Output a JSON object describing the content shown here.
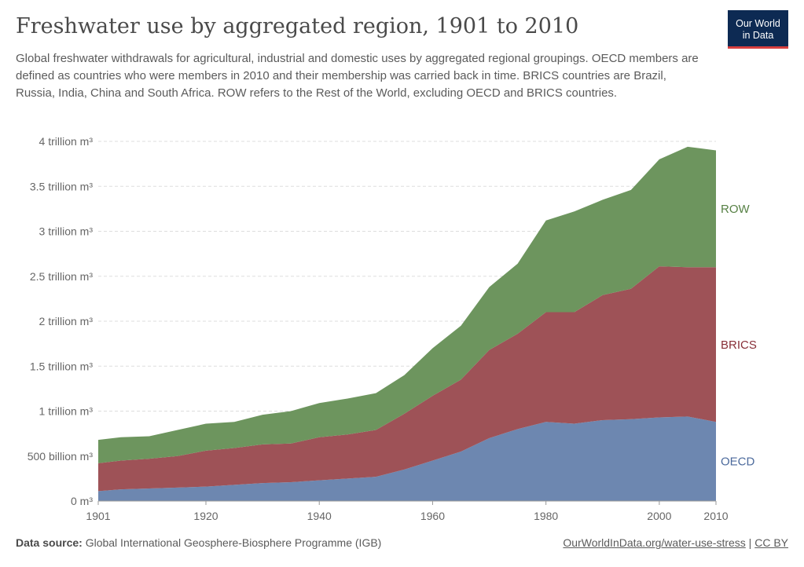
{
  "header": {
    "title": "Freshwater use by aggregated region, 1901 to 2010",
    "subtitle": "Global freshwater withdrawals for agricultural, industrial and domestic uses by aggregated regional groupings. OECD members are defined as countries who were members in 2010 and their membership was carried back in time. BRICS countries are Brazil, Russia, India, China and South Africa. ROW refers to the Rest of the World, excluding OECD and BRICS countries.",
    "logo_line1": "Our World",
    "logo_line2": "in Data"
  },
  "footer": {
    "source_label": "Data source:",
    "source_text": "Global International Geosphere-Biosphere Programme (IGB)",
    "link_text": "OurWorldInData.org/water-use-stress",
    "separator": "|",
    "license": "CC BY"
  },
  "colors": {
    "OECD": "#6d87b0",
    "BRICS": "#9e5257",
    "ROW": "#6d955e",
    "OECD_label": "#4c6a9c",
    "BRICS_label": "#883039",
    "ROW_label": "#578145"
  },
  "chart_data": {
    "type": "area",
    "stacked": true,
    "grid": "horizontal dashed",
    "xlim": [
      1901,
      2010
    ],
    "ylim": [
      0,
      4
    ],
    "y_unit": "trillion m³",
    "x_ticks": [
      "1901",
      "1920",
      "1940",
      "1960",
      "1980",
      "2000",
      "2010"
    ],
    "y_ticks": [
      "0 m³",
      "500 billion m³",
      "1 trillion m³",
      "1.5 trillion m³",
      "2 trillion m³",
      "2.5 trillion m³",
      "3 trillion m³",
      "3.5 trillion m³",
      "4 trillion m³"
    ],
    "x": [
      1901,
      1905,
      1910,
      1915,
      1920,
      1925,
      1930,
      1935,
      1940,
      1945,
      1950,
      1955,
      1960,
      1965,
      1970,
      1975,
      1980,
      1985,
      1990,
      1995,
      2000,
      2005,
      2010
    ],
    "series": [
      {
        "name": "OECD",
        "values": [
          0.11,
          0.13,
          0.14,
          0.15,
          0.16,
          0.18,
          0.2,
          0.21,
          0.23,
          0.25,
          0.27,
          0.35,
          0.45,
          0.55,
          0.7,
          0.8,
          0.88,
          0.86,
          0.9,
          0.91,
          0.93,
          0.94,
          0.88
        ]
      },
      {
        "name": "BRICS",
        "values": [
          0.31,
          0.32,
          0.33,
          0.35,
          0.4,
          0.41,
          0.43,
          0.43,
          0.48,
          0.49,
          0.52,
          0.62,
          0.72,
          0.8,
          0.98,
          1.06,
          1.22,
          1.24,
          1.39,
          1.45,
          1.68,
          1.66,
          1.72
        ]
      },
      {
        "name": "ROW",
        "values": [
          0.26,
          0.26,
          0.25,
          0.29,
          0.3,
          0.29,
          0.33,
          0.36,
          0.38,
          0.4,
          0.41,
          0.43,
          0.53,
          0.6,
          0.7,
          0.78,
          1.02,
          1.12,
          1.06,
          1.1,
          1.19,
          1.34,
          1.3
        ]
      }
    ]
  }
}
